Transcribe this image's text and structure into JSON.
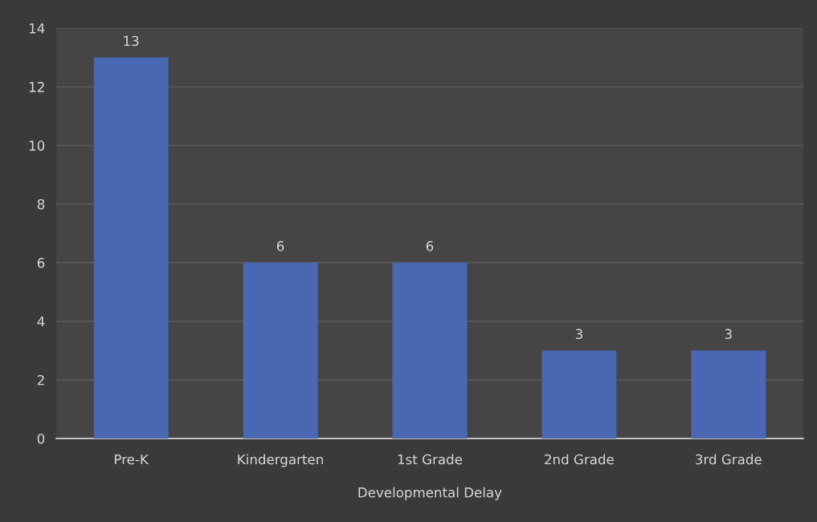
{
  "chart_data": {
    "type": "bar",
    "xlabel": "Developmental Delay",
    "categories": [
      "Pre-K",
      "Kindergarten",
      "1st Grade",
      "2nd Grade",
      "3rd Grade"
    ],
    "values": [
      13,
      6,
      6,
      3,
      3
    ],
    "color": "#4a67b4",
    "ylim": [
      0,
      14
    ],
    "yticks": [
      0,
      2,
      4,
      6,
      8,
      10,
      12,
      14
    ],
    "grid": "y",
    "data_labels": true,
    "legend": false
  }
}
